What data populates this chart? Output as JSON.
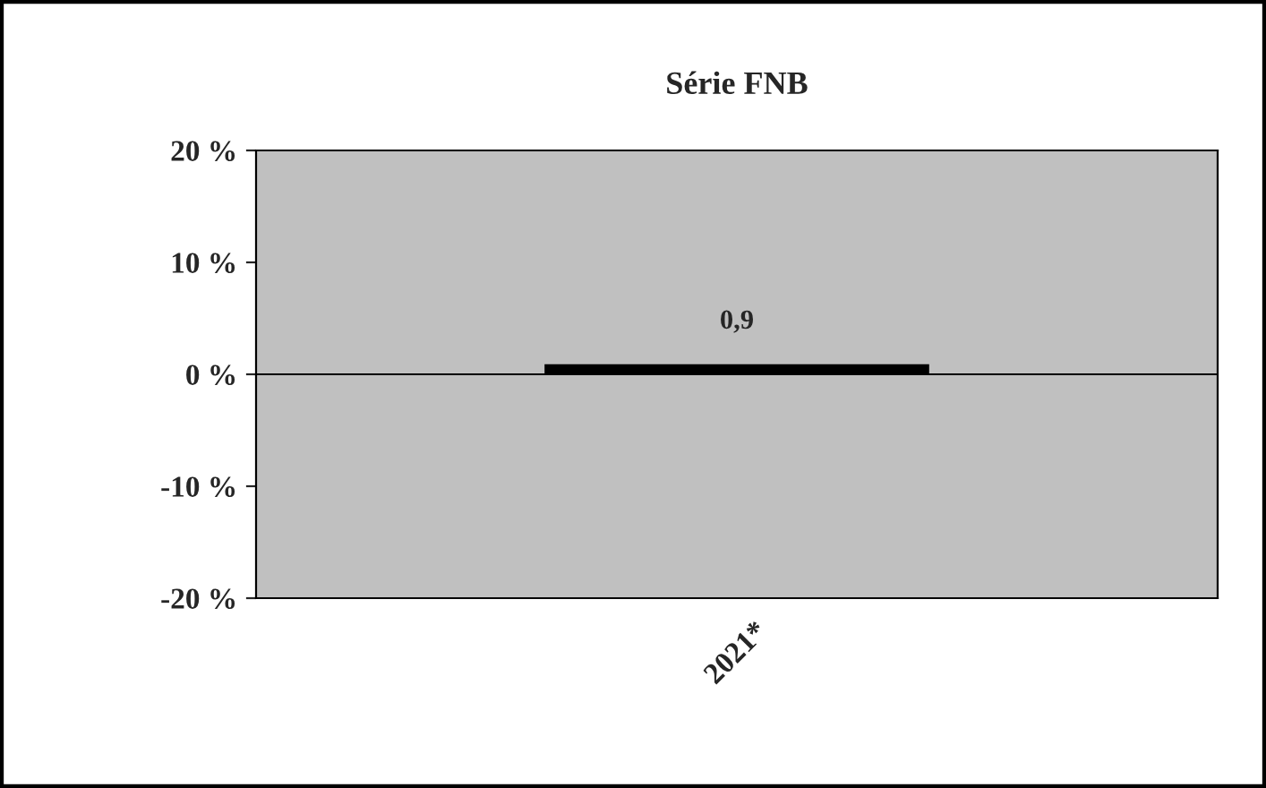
{
  "chart_data": {
    "type": "bar",
    "title": "Série FNB",
    "categories": [
      "2021*"
    ],
    "series": [
      {
        "color": "#000000",
        "values": [
          0.9
        ]
      }
    ],
    "value_labels": [
      "0,9"
    ],
    "ylim": [
      -20,
      20
    ],
    "yticks": [
      {
        "value": -20,
        "label": "-20 %"
      },
      {
        "value": -10,
        "label": "-10 %"
      },
      {
        "value": 0,
        "label": "0 %"
      },
      {
        "value": 10,
        "label": "10 %"
      },
      {
        "value": 20,
        "label": "20 %"
      }
    ],
    "ref_lines": [
      {
        "axis": "y",
        "value": 0,
        "color": "#000000"
      }
    ],
    "grid": false,
    "legend": false
  }
}
